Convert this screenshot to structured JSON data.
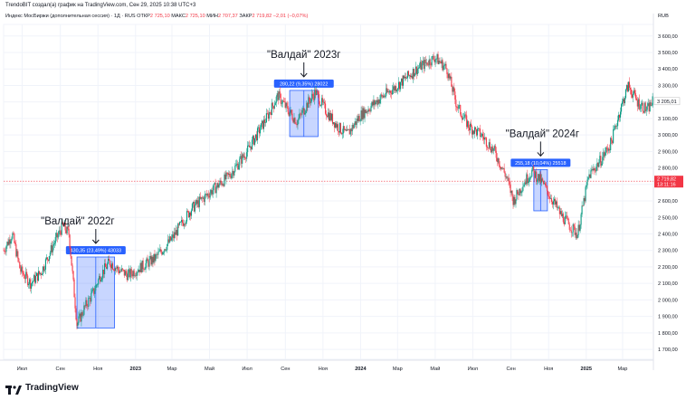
{
  "header": {
    "title": "TrendoBIT создал(а) график на TradingView.com, Сен 29, 2025 10:38 UTC+3"
  },
  "info": {
    "symbol": "Индекс МосБиржи (дополнительная сессия) · 1Д · RUS",
    "open_label": "ОТКР",
    "open": "2 725,10",
    "high_label": "МАКС",
    "high": "2 725,10",
    "low_label": "МИН",
    "low": "2 707,37",
    "close_label": "ЗАКР",
    "close": "2 719,82",
    "change": "−2,01 (−0,07%)"
  },
  "currency": "RUB",
  "colors": {
    "up": "#089981",
    "down": "#f23645",
    "measure_fill": "#2962ff",
    "price_label": "#f23645",
    "ref_label": "#c7c7c7"
  },
  "footer": {
    "brand": "TradingView",
    "logo": "tradingview-logo-icon"
  },
  "chart_data": {
    "type": "candlestick",
    "title": "",
    "xlabel": "",
    "ylabel": "",
    "ylim": [
      1640,
      3670
    ],
    "y_ticks": [
      "3 600,00",
      "3 500,00",
      "3 400,00",
      "3 300,00",
      "3 200,00",
      "3 100,00",
      "3 000,00",
      "2 900,00",
      "2 800,00",
      "2 700,00",
      "2 600,00",
      "2 500,00",
      "2 400,00",
      "2 300,00",
      "2 200,00",
      "2 100,00",
      "2 000,00",
      "1 900,00",
      "1 800,00",
      "1 700,00"
    ],
    "y_tick_values": [
      3600,
      3500,
      3400,
      3300,
      3200,
      3100,
      3000,
      2900,
      2800,
      2700,
      2600,
      2500,
      2400,
      2300,
      2200,
      2100,
      2000,
      1900,
      1800,
      1700
    ],
    "x_ticks": [
      {
        "label": "Июл",
        "date": "2022-07-01",
        "bold": false
      },
      {
        "label": "Сен",
        "date": "2022-09-01",
        "bold": false
      },
      {
        "label": "Ноя",
        "date": "2022-11-01",
        "bold": false
      },
      {
        "label": "2023",
        "date": "2023-01-01",
        "bold": true
      },
      {
        "label": "Мар",
        "date": "2023-03-01",
        "bold": false
      },
      {
        "label": "Май",
        "date": "2023-05-01",
        "bold": false
      },
      {
        "label": "Июл",
        "date": "2023-07-01",
        "bold": false
      },
      {
        "label": "Сен",
        "date": "2023-09-01",
        "bold": false
      },
      {
        "label": "Ноя",
        "date": "2023-11-01",
        "bold": false
      },
      {
        "label": "2024",
        "date": "2024-01-01",
        "bold": true
      },
      {
        "label": "Мар",
        "date": "2024-03-01",
        "bold": false
      },
      {
        "label": "Май",
        "date": "2024-05-01",
        "bold": false
      },
      {
        "label": "Июл",
        "date": "2024-07-01",
        "bold": false
      },
      {
        "label": "Сен",
        "date": "2024-09-01",
        "bold": false
      },
      {
        "label": "Ноя",
        "date": "2024-11-01",
        "bold": false
      },
      {
        "label": "2025",
        "date": "2025-01-01",
        "bold": true
      },
      {
        "label": "Мар",
        "date": "2025-03-01",
        "bold": false
      }
    ],
    "x_range": [
      "2022-06-01",
      "2025-04-20"
    ],
    "price_path": [
      {
        "date": "2022-06-01",
        "value": 2300
      },
      {
        "date": "2022-06-15",
        "value": 2400
      },
      {
        "date": "2022-06-28",
        "value": 2180
      },
      {
        "date": "2022-07-15",
        "value": 2100
      },
      {
        "date": "2022-08-01",
        "value": 2170
      },
      {
        "date": "2022-08-20",
        "value": 2330
      },
      {
        "date": "2022-09-05",
        "value": 2450
      },
      {
        "date": "2022-09-15",
        "value": 2400
      },
      {
        "date": "2022-09-22",
        "value": 2100
      },
      {
        "date": "2022-09-28",
        "value": 1850
      },
      {
        "date": "2022-10-10",
        "value": 1950
      },
      {
        "date": "2022-10-25",
        "value": 2050
      },
      {
        "date": "2022-11-05",
        "value": 2150
      },
      {
        "date": "2022-11-20",
        "value": 2230
      },
      {
        "date": "2022-12-05",
        "value": 2180
      },
      {
        "date": "2022-12-20",
        "value": 2150
      },
      {
        "date": "2023-01-10",
        "value": 2200
      },
      {
        "date": "2023-02-01",
        "value": 2250
      },
      {
        "date": "2023-03-01",
        "value": 2370
      },
      {
        "date": "2023-04-01",
        "value": 2550
      },
      {
        "date": "2023-05-01",
        "value": 2650
      },
      {
        "date": "2023-06-01",
        "value": 2750
      },
      {
        "date": "2023-07-01",
        "value": 2900
      },
      {
        "date": "2023-08-01",
        "value": 3100
      },
      {
        "date": "2023-08-20",
        "value": 3240
      },
      {
        "date": "2023-09-05",
        "value": 3150
      },
      {
        "date": "2023-09-20",
        "value": 3080
      },
      {
        "date": "2023-10-05",
        "value": 3180
      },
      {
        "date": "2023-10-20",
        "value": 3260
      },
      {
        "date": "2023-11-05",
        "value": 3150
      },
      {
        "date": "2023-11-25",
        "value": 3050
      },
      {
        "date": "2023-12-10",
        "value": 3000
      },
      {
        "date": "2024-01-01",
        "value": 3120
      },
      {
        "date": "2024-02-01",
        "value": 3220
      },
      {
        "date": "2024-03-01",
        "value": 3300
      },
      {
        "date": "2024-04-01",
        "value": 3400
      },
      {
        "date": "2024-05-01",
        "value": 3470
      },
      {
        "date": "2024-05-20",
        "value": 3400
      },
      {
        "date": "2024-06-05",
        "value": 3180
      },
      {
        "date": "2024-06-25",
        "value": 3050
      },
      {
        "date": "2024-07-15",
        "value": 3000
      },
      {
        "date": "2024-08-05",
        "value": 2900
      },
      {
        "date": "2024-08-25",
        "value": 2740
      },
      {
        "date": "2024-09-05",
        "value": 2600
      },
      {
        "date": "2024-09-20",
        "value": 2700
      },
      {
        "date": "2024-10-05",
        "value": 2780
      },
      {
        "date": "2024-10-20",
        "value": 2720
      },
      {
        "date": "2024-11-05",
        "value": 2620
      },
      {
        "date": "2024-11-20",
        "value": 2520
      },
      {
        "date": "2024-12-05",
        "value": 2450
      },
      {
        "date": "2024-12-18",
        "value": 2400
      },
      {
        "date": "2025-01-05",
        "value": 2750
      },
      {
        "date": "2025-01-25",
        "value": 2850
      },
      {
        "date": "2025-02-10",
        "value": 2950
      },
      {
        "date": "2025-02-25",
        "value": 3150
      },
      {
        "date": "2025-03-10",
        "value": 3300
      },
      {
        "date": "2025-03-25",
        "value": 3200
      },
      {
        "date": "2025-04-10",
        "value": 3150
      },
      {
        "date": "2025-04-20",
        "value": 3210
      }
    ],
    "last_price": {
      "value": 2719.82,
      "label": "2 719,82",
      "countdown": "13:11:16"
    },
    "reference_price": {
      "value": 3205.01,
      "label": "3 205,01"
    },
    "annotations": [
      {
        "label": "\"Валдай\" 2022г",
        "start": "2022-09-28",
        "end": "2022-11-28",
        "low": 1830,
        "high": 2260,
        "measure": "430,35 (23,49%) 43033"
      },
      {
        "label": "\"Валдай\" 2023г",
        "start": "2023-09-08",
        "end": "2023-10-24",
        "low": 2990,
        "high": 3270,
        "measure": "280,22 (9,35%) 28022"
      },
      {
        "label": "\"Валдай\" 2024г",
        "start": "2024-10-08",
        "end": "2024-10-30",
        "low": 2540,
        "high": 2790,
        "measure": "255,18 (10,04%) 25518"
      }
    ]
  }
}
